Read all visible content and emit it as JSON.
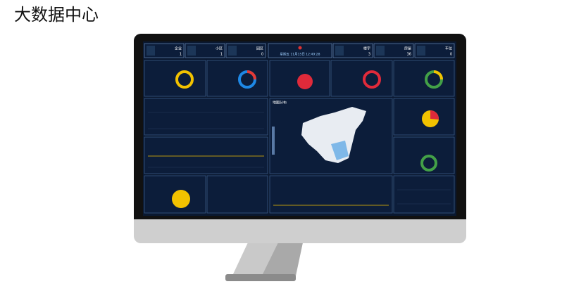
{
  "header": {
    "title": "大数据中心"
  },
  "stats_left": [
    {
      "label": "企业",
      "value": 1
    },
    {
      "label": "小区",
      "value": 1
    },
    {
      "label": "园区",
      "value": 0
    }
  ],
  "stats_right": [
    {
      "label": "楼宇",
      "value": 3
    },
    {
      "label": "房屋",
      "value": 36
    },
    {
      "label": "车位",
      "value": 0
    }
  ],
  "date": "星期五 11月15日 12:49:28",
  "map": {
    "title": "地图分布"
  }
}
